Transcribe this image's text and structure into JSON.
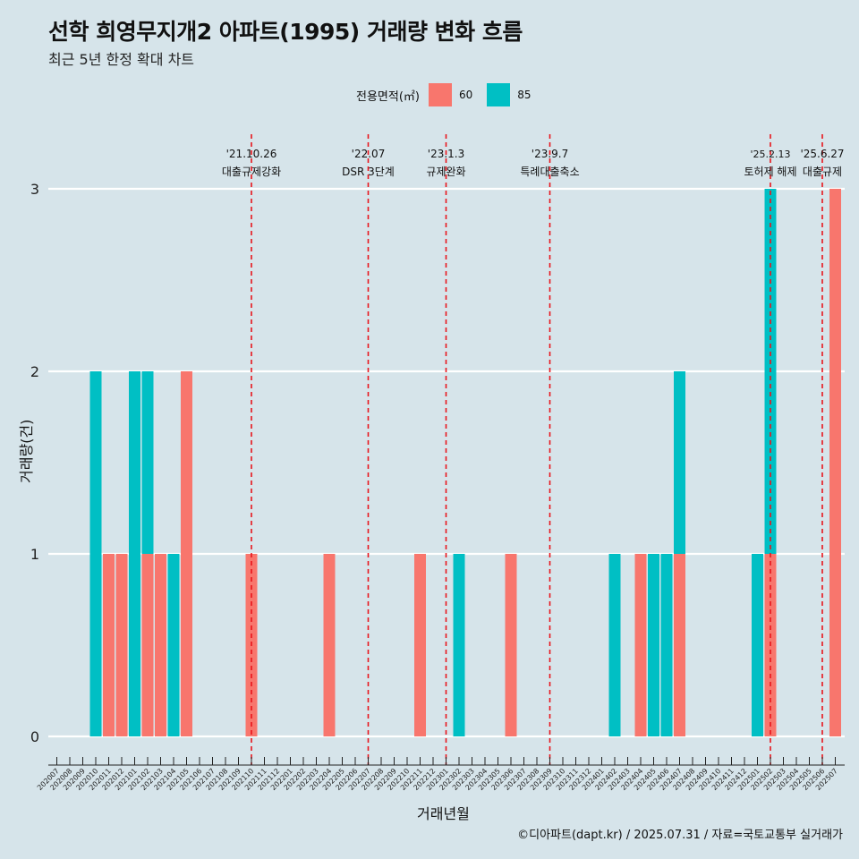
{
  "title": "선학 희영무지개2 아파트(1995) 거래량 변화 흐름",
  "subtitle": "최근 5년 한정 확대 차트",
  "legend": {
    "title": "전용면적(㎡)",
    "items": [
      {
        "label": "60",
        "color": "#f8766d"
      },
      {
        "label": "85",
        "color": "#00bfc4"
      }
    ]
  },
  "caption": "©디아파트(dapt.kr) / 2025.07.31 / 자료=국토교통부 실거래가",
  "chart_data": {
    "type": "bar",
    "xlabel": "거래년월",
    "ylabel": "거래량(건)",
    "ylim": [
      0,
      3
    ],
    "yticks": [
      "0",
      "1",
      "2",
      "3"
    ],
    "categories": [
      "202007",
      "202008",
      "202009",
      "202010",
      "202011",
      "202012",
      "202101",
      "202102",
      "202103",
      "202104",
      "202105",
      "202106",
      "202107",
      "202108",
      "202109",
      "202110",
      "202111",
      "202112",
      "202201",
      "202202",
      "202203",
      "202204",
      "202205",
      "202206",
      "202207",
      "202208",
      "202209",
      "202210",
      "202211",
      "202212",
      "202301",
      "202302",
      "202303",
      "202304",
      "202305",
      "202306",
      "202307",
      "202308",
      "202309",
      "202310",
      "202311",
      "202312",
      "202401",
      "202402",
      "202403",
      "202404",
      "202405",
      "202406",
      "202407",
      "202408",
      "202409",
      "202410",
      "202411",
      "202412",
      "202501",
      "202502",
      "202503",
      "202504",
      "202505",
      "202506",
      "202507"
    ],
    "series": [
      {
        "name": "60",
        "color": "#f8766d",
        "values": [
          0,
          0,
          0,
          0,
          1,
          1,
          0,
          1,
          1,
          0,
          2,
          0,
          0,
          0,
          0,
          1,
          0,
          0,
          0,
          0,
          0,
          1,
          0,
          0,
          0,
          0,
          0,
          0,
          1,
          0,
          0,
          0,
          0,
          0,
          0,
          1,
          0,
          0,
          0,
          0,
          0,
          0,
          0,
          0,
          0,
          1,
          0,
          0,
          1,
          0,
          0,
          0,
          0,
          0,
          0,
          1,
          0,
          0,
          0,
          0,
          3
        ]
      },
      {
        "name": "85",
        "color": "#00bfc4",
        "values": [
          0,
          0,
          0,
          2,
          0,
          0,
          2,
          1,
          0,
          1,
          0,
          0,
          0,
          0,
          0,
          0,
          0,
          0,
          0,
          0,
          0,
          0,
          0,
          0,
          0,
          0,
          0,
          0,
          0,
          0,
          0,
          1,
          0,
          0,
          0,
          0,
          0,
          0,
          0,
          0,
          0,
          0,
          0,
          1,
          0,
          0,
          1,
          1,
          1,
          0,
          0,
          0,
          0,
          0,
          1,
          2,
          0,
          0,
          0,
          0,
          0
        ]
      }
    ],
    "annotations": [
      {
        "date": "'21.10.26",
        "label": "대출규제강화",
        "category": "202110"
      },
      {
        "date": "'22.07",
        "label": "DSR 3단계",
        "category": "202207"
      },
      {
        "date": "'23.1.3",
        "label": "규제완화",
        "category": "202301"
      },
      {
        "date": "'23.9.7",
        "label": "특례대출축소",
        "category": "202309"
      },
      {
        "date": "'25.2.13",
        "label": "토허제 해제",
        "category": "202502"
      },
      {
        "date": "'25.6.27",
        "label": "대출규제",
        "category": "202506"
      }
    ]
  }
}
